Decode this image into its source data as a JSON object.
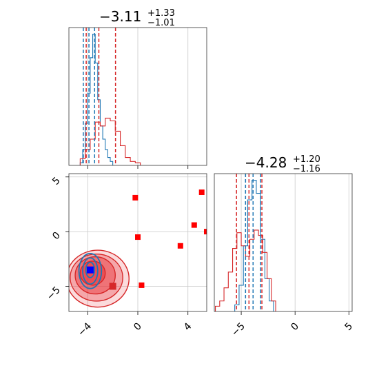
{
  "chart_data": {
    "type": "corner",
    "panels": [
      {
        "id": "hist-param1",
        "type": "histogram",
        "title": {
          "median": "−3.11",
          "plus": "+1.33",
          "minus": "−1.01"
        },
        "xlim": [
          -5.5,
          5.5
        ],
        "series": [
          {
            "color": "#1f77b4",
            "bin_edges": [
              -4.6,
              -4.4,
              -4.2,
              -4.0,
              -3.8,
              -3.6,
              -3.4,
              -3.2,
              -3.0,
              -2.8,
              -2.6,
              -2.4,
              -2.2,
              -2.0
            ],
            "counts": [
              0.02,
              0.12,
              0.32,
              0.55,
              0.82,
              1.0,
              0.78,
              0.5,
              0.3,
              0.2,
              0.12,
              0.06,
              0.03
            ]
          },
          {
            "color": "#d62728",
            "bin_edges": [
              -4.6,
              -4.2,
              -3.8,
              -3.4,
              -3.0,
              -2.6,
              -2.2,
              -1.8,
              -1.4,
              -1.0,
              -0.6,
              -0.2,
              0.2
            ],
            "counts": [
              0.05,
              0.12,
              0.2,
              0.33,
              0.3,
              0.36,
              0.34,
              0.26,
              0.15,
              0.06,
              0.03,
              0.02
            ]
          }
        ],
        "quantile_lines": [
          {
            "color": "#1f77b4",
            "values": [
              -4.35,
              -3.9,
              -3.45
            ]
          },
          {
            "color": "#d62728",
            "values": [
              -4.12,
              -3.11,
              -1.78
            ]
          }
        ]
      },
      {
        "id": "scatter-param1-param2",
        "type": "contour",
        "xlim": [
          -5.5,
          5.5
        ],
        "ylim": [
          -7.3,
          5.3
        ],
        "xticks": [
          {
            "v": -4,
            "label": "−4"
          },
          {
            "v": 0,
            "label": "0"
          },
          {
            "v": 4,
            "label": "4"
          }
        ],
        "yticks": [
          {
            "v": -5,
            "label": "−5"
          },
          {
            "v": 0,
            "label": "0"
          },
          {
            "v": 5,
            "label": "5"
          }
        ],
        "red_points": [
          [
            -0.2,
            3.1
          ],
          [
            0.0,
            -0.5
          ],
          [
            4.5,
            0.6
          ],
          [
            5.1,
            3.6
          ],
          [
            3.4,
            -1.3
          ],
          [
            0.3,
            -4.9
          ],
          [
            5.5,
            0.0
          ]
        ],
        "red_center": [
          -2.0,
          -5.0
        ],
        "blue_point": [
          -3.8,
          -3.5
        ],
        "contours_red": [
          {
            "cx": -3.2,
            "cy": -4.3,
            "rx": 2.5,
            "ry": 2.6,
            "alpha": 0.25
          },
          {
            "cx": -3.3,
            "cy": -4.2,
            "rx": 2.1,
            "ry": 2.15,
            "alpha": 0.45
          },
          {
            "cx": -3.4,
            "cy": -4.0,
            "rx": 1.6,
            "ry": 1.7,
            "alpha": 0.65
          },
          {
            "cx": -3.6,
            "cy": -3.8,
            "rx": 1.0,
            "ry": 1.1,
            "alpha": 0.85
          }
        ],
        "contours_blue": [
          {
            "cx": -3.8,
            "cy": -3.6,
            "rx": 0.9,
            "ry": 1.6
          },
          {
            "cx": -3.8,
            "cy": -3.6,
            "rx": 0.6,
            "ry": 1.2
          },
          {
            "cx": -3.8,
            "cy": -3.5,
            "rx": 0.35,
            "ry": 0.7
          }
        ]
      },
      {
        "id": "hist-param2",
        "type": "histogram",
        "title": {
          "median": "−4.28",
          "plus": "+1.20",
          "minus": "−1.16"
        },
        "xlim": [
          -7.5,
          5.3
        ],
        "xticks": [
          {
            "v": -5,
            "label": "−5"
          },
          {
            "v": 0,
            "label": "0"
          },
          {
            "v": 5,
            "label": "5"
          }
        ],
        "series": [
          {
            "color": "#1f77b4",
            "bin_edges": [
              -5.6,
              -5.2,
              -4.8,
              -4.4,
              -4.0,
              -3.6,
              -3.2,
              -2.8,
              -2.4,
              -2.0
            ],
            "counts": [
              0.05,
              0.2,
              0.5,
              0.85,
              1.0,
              0.9,
              0.55,
              0.25,
              0.08
            ]
          },
          {
            "color": "#d62728",
            "bin_edges": [
              -7.4,
              -7.0,
              -6.6,
              -6.2,
              -5.8,
              -5.4,
              -5.0,
              -4.6,
              -4.2,
              -3.8,
              -3.4,
              -3.0,
              -2.6,
              -2.2,
              -1.8
            ],
            "counts": [
              0.04,
              0.08,
              0.18,
              0.3,
              0.48,
              0.6,
              0.5,
              0.42,
              0.55,
              0.62,
              0.58,
              0.45,
              0.25,
              0.08
            ]
          }
        ],
        "quantile_lines": [
          {
            "color": "#1f77b4",
            "values": [
              -4.6,
              -3.9,
              -3.2
            ]
          },
          {
            "color": "#d62728",
            "values": [
              -5.44,
              -4.28,
              -3.08
            ]
          }
        ]
      }
    ]
  }
}
